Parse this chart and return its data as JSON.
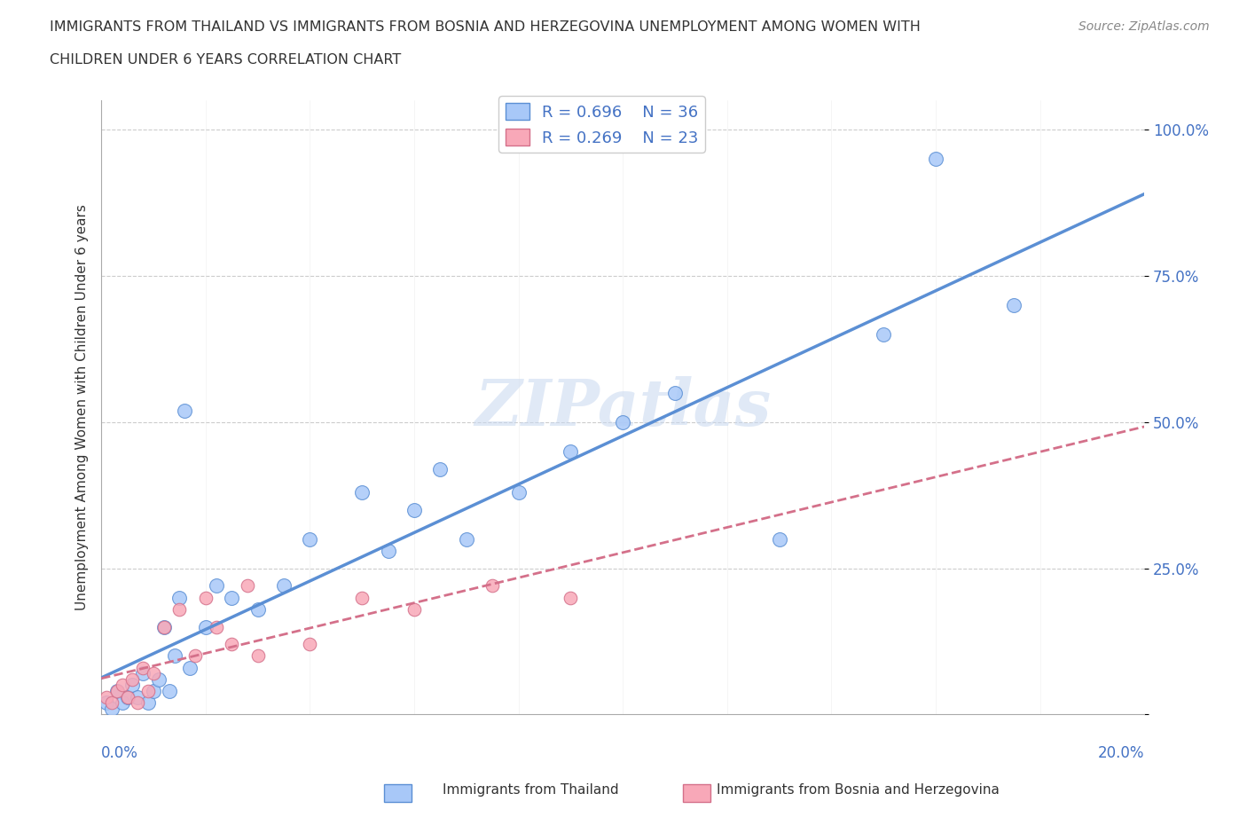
{
  "title_line1": "IMMIGRANTS FROM THAILAND VS IMMIGRANTS FROM BOSNIA AND HERZEGOVINA UNEMPLOYMENT AMONG WOMEN WITH",
  "title_line2": "CHILDREN UNDER 6 YEARS CORRELATION CHART",
  "source_text": "Source: ZipAtlas.com",
  "ylabel": "Unemployment Among Women with Children Under 6 years",
  "color_thailand": "#a8c8f8",
  "color_bosnia": "#f8a8b8",
  "color_line_thailand": "#5b8fd4",
  "color_line_bosnia": "#d4708a",
  "watermark_text": "ZIPatlas",
  "background_color": "#ffffff",
  "grid_color": "#cccccc",
  "xlim": [
    0.0,
    0.2
  ],
  "ylim": [
    0.0,
    1.05
  ],
  "legend_label1": "R = 0.696    N = 36",
  "legend_label2": "R = 0.269    N = 23",
  "bottom_label1": "Immigrants from Thailand",
  "bottom_label2": "Immigrants from Bosnia and Herzegovina",
  "thailand_x": [
    0.001,
    0.002,
    0.003,
    0.004,
    0.005,
    0.006,
    0.007,
    0.008,
    0.009,
    0.01,
    0.011,
    0.012,
    0.013,
    0.014,
    0.015,
    0.016,
    0.017,
    0.02,
    0.022,
    0.025,
    0.03,
    0.035,
    0.04,
    0.05,
    0.055,
    0.06,
    0.065,
    0.07,
    0.08,
    0.09,
    0.1,
    0.11,
    0.13,
    0.15,
    0.16,
    0.175
  ],
  "thailand_y": [
    0.02,
    0.01,
    0.04,
    0.02,
    0.03,
    0.05,
    0.03,
    0.07,
    0.02,
    0.04,
    0.06,
    0.15,
    0.04,
    0.1,
    0.2,
    0.52,
    0.08,
    0.15,
    0.22,
    0.2,
    0.18,
    0.22,
    0.3,
    0.38,
    0.28,
    0.35,
    0.42,
    0.3,
    0.38,
    0.45,
    0.5,
    0.55,
    0.3,
    0.65,
    0.95,
    0.7
  ],
  "bosnia_x": [
    0.001,
    0.002,
    0.003,
    0.004,
    0.005,
    0.006,
    0.007,
    0.008,
    0.009,
    0.01,
    0.012,
    0.015,
    0.018,
    0.02,
    0.022,
    0.025,
    0.028,
    0.03,
    0.04,
    0.05,
    0.06,
    0.075,
    0.09
  ],
  "bosnia_y": [
    0.03,
    0.02,
    0.04,
    0.05,
    0.03,
    0.06,
    0.02,
    0.08,
    0.04,
    0.07,
    0.15,
    0.18,
    0.1,
    0.2,
    0.15,
    0.12,
    0.22,
    0.1,
    0.12,
    0.2,
    0.18,
    0.22,
    0.2
  ]
}
